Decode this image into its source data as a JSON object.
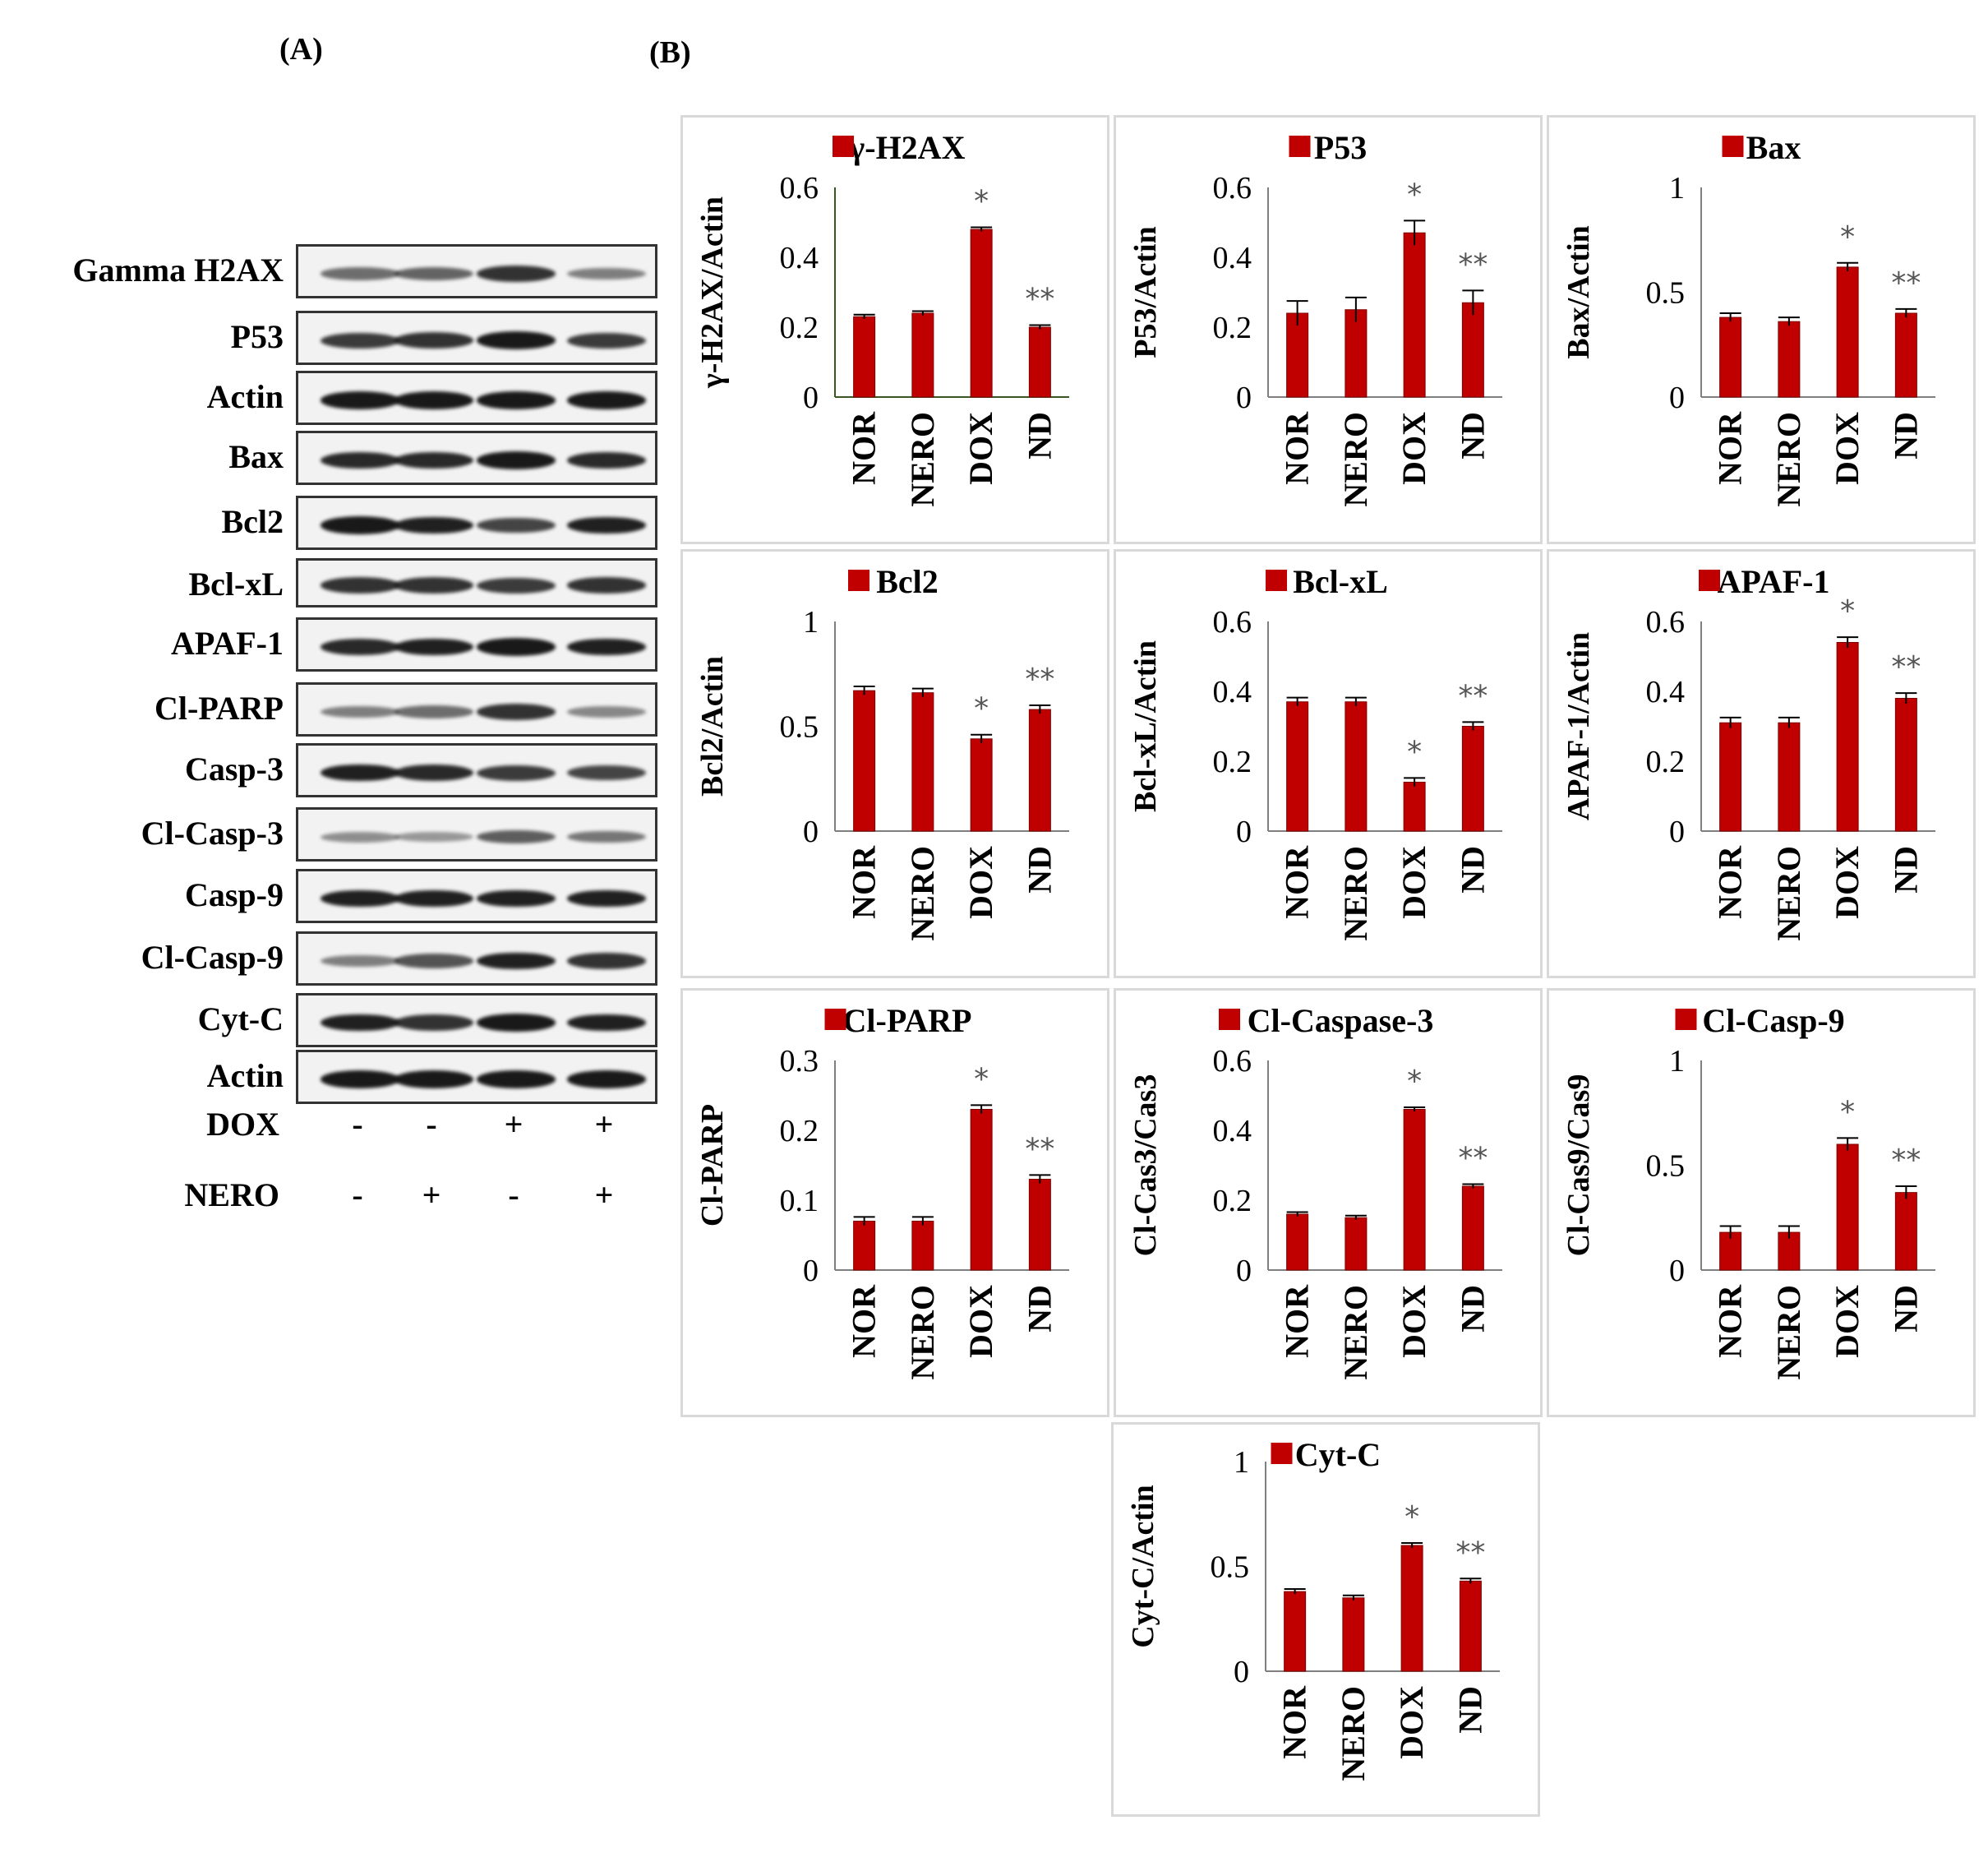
{
  "panels": {
    "a": "(A)",
    "b": "(B)"
  },
  "colors": {
    "bar": "#c00000",
    "bar_edge": "#7f0000",
    "axis": "#7f7f7f",
    "axis_first": "#385723",
    "border": "#d9d9d9",
    "band": "#111111"
  },
  "blots": [
    {
      "label": "Gamma H2AX",
      "intensity": [
        0.45,
        0.5,
        0.8,
        0.35
      ]
    },
    {
      "label": "P53",
      "intensity": [
        0.75,
        0.8,
        0.95,
        0.75
      ]
    },
    {
      "label": "Actin",
      "intensity": [
        0.95,
        0.95,
        0.95,
        0.95
      ]
    },
    {
      "label": "Bax",
      "intensity": [
        0.85,
        0.85,
        0.95,
        0.85
      ]
    },
    {
      "label": "Bcl2",
      "intensity": [
        0.95,
        0.9,
        0.7,
        0.9
      ]
    },
    {
      "label": "Bcl-xL",
      "intensity": [
        0.8,
        0.8,
        0.75,
        0.8
      ]
    },
    {
      "label": "APAF-1",
      "intensity": [
        0.85,
        0.9,
        0.95,
        0.9
      ]
    },
    {
      "label": "Cl-PARP",
      "intensity": [
        0.35,
        0.45,
        0.8,
        0.3
      ]
    },
    {
      "label": "Casp-3",
      "intensity": [
        0.9,
        0.85,
        0.75,
        0.7
      ]
    },
    {
      "label": "Cl-Casp-3",
      "intensity": [
        0.25,
        0.2,
        0.55,
        0.4
      ]
    },
    {
      "label": "Casp-9",
      "intensity": [
        0.9,
        0.9,
        0.9,
        0.9
      ]
    },
    {
      "label": "Cl-Casp-9",
      "intensity": [
        0.35,
        0.6,
        0.9,
        0.8
      ]
    },
    {
      "label": "Cyt-C",
      "intensity": [
        0.9,
        0.8,
        0.95,
        0.9
      ]
    },
    {
      "label": "Actin",
      "intensity": [
        0.95,
        0.95,
        0.95,
        0.95
      ]
    }
  ],
  "treatments": [
    {
      "label": "DOX",
      "signs": [
        "-",
        "-",
        "+",
        "+"
      ]
    },
    {
      "label": "NERO",
      "signs": [
        "-",
        "+",
        "-",
        "+"
      ]
    }
  ],
  "chart_data": [
    {
      "type": "bar",
      "title": "γ-H2AX",
      "ylabel": "γ-H2AX/Actin",
      "categories": [
        "NOR",
        "NERO",
        "DOX",
        "ND"
      ],
      "values": [
        0.23,
        0.24,
        0.48,
        0.2
      ],
      "errors": [
        0.006,
        0.006,
        0.006,
        0.006
      ],
      "ylim": [
        0,
        0.6
      ],
      "yticks": [
        "0",
        "0.2",
        "0.4",
        "0.6"
      ],
      "yticks_values": [
        0,
        0.2,
        0.4,
        0.6
      ],
      "annotations": [
        "",
        "",
        "*",
        "**"
      ]
    },
    {
      "type": "bar",
      "title": "P53",
      "ylabel": "P53/Actin",
      "categories": [
        "NOR",
        "NERO",
        "DOX",
        "ND"
      ],
      "values": [
        0.24,
        0.25,
        0.47,
        0.27
      ],
      "errors": [
        0.035,
        0.035,
        0.035,
        0.035
      ],
      "ylim": [
        0,
        0.6
      ],
      "yticks": [
        "0",
        "0.2",
        "0.4",
        "0.6"
      ],
      "yticks_values": [
        0,
        0.2,
        0.4,
        0.6
      ],
      "annotations": [
        "",
        "",
        "*",
        "**"
      ]
    },
    {
      "type": "bar",
      "title": "Bax",
      "ylabel": "Bax/Actin",
      "categories": [
        "NOR",
        "NERO",
        "DOX",
        "ND"
      ],
      "values": [
        0.38,
        0.36,
        0.62,
        0.4
      ],
      "errors": [
        0.02,
        0.02,
        0.02,
        0.02
      ],
      "ylim": [
        0,
        1
      ],
      "yticks": [
        "0",
        "0.5",
        "1"
      ],
      "yticks_values": [
        0,
        0.5,
        1
      ],
      "annotations": [
        "",
        "",
        "*",
        "**"
      ]
    },
    {
      "type": "bar",
      "title": "Bcl2",
      "ylabel": "Bcl2/Actin",
      "categories": [
        "NOR",
        "NERO",
        "DOX",
        "ND"
      ],
      "values": [
        0.67,
        0.66,
        0.44,
        0.58
      ],
      "errors": [
        0.02,
        0.02,
        0.02,
        0.02
      ],
      "ylim": [
        0,
        1
      ],
      "yticks": [
        "0",
        "0.5",
        "1"
      ],
      "yticks_values": [
        0,
        0.5,
        1
      ],
      "annotations": [
        "",
        "",
        "*",
        "**"
      ]
    },
    {
      "type": "bar",
      "title": "Bcl-xL",
      "ylabel": "Bcl-xL/Actin",
      "categories": [
        "NOR",
        "NERO",
        "DOX",
        "ND"
      ],
      "values": [
        0.37,
        0.37,
        0.14,
        0.3
      ],
      "errors": [
        0.012,
        0.012,
        0.012,
        0.012
      ],
      "ylim": [
        0,
        0.6
      ],
      "yticks": [
        "0",
        "0.2",
        "0.4",
        "0.6"
      ],
      "yticks_values": [
        0,
        0.2,
        0.4,
        0.6
      ],
      "annotations": [
        "",
        "",
        "*",
        "**"
      ]
    },
    {
      "type": "bar",
      "title": "APAF-1",
      "ylabel": "APAF-1/Actin",
      "categories": [
        "NOR",
        "NERO",
        "DOX",
        "ND"
      ],
      "values": [
        0.31,
        0.31,
        0.54,
        0.38
      ],
      "errors": [
        0.015,
        0.015,
        0.015,
        0.015
      ],
      "ylim": [
        0,
        0.6
      ],
      "yticks": [
        "0",
        "0.2",
        "0.4",
        "0.6"
      ],
      "yticks_values": [
        0,
        0.2,
        0.4,
        0.6
      ],
      "annotations": [
        "",
        "",
        "*",
        "**"
      ]
    },
    {
      "type": "bar",
      "title": "Cl-PARP",
      "ylabel": "Cl-PARP",
      "categories": [
        "NOR",
        "NERO",
        "DOX",
        "ND"
      ],
      "values": [
        0.07,
        0.07,
        0.23,
        0.13
      ],
      "errors": [
        0.006,
        0.006,
        0.006,
        0.006
      ],
      "ylim": [
        0,
        0.3
      ],
      "yticks": [
        "0",
        "0.1",
        "0.2",
        "0.3"
      ],
      "yticks_values": [
        0,
        0.1,
        0.2,
        0.3
      ],
      "annotations": [
        "",
        "",
        "*",
        "**"
      ]
    },
    {
      "type": "bar",
      "title": "Cl-Caspase-3",
      "ylabel": "Cl-Cas3/Cas3",
      "categories": [
        "NOR",
        "NERO",
        "DOX",
        "ND"
      ],
      "values": [
        0.16,
        0.15,
        0.46,
        0.24
      ],
      "errors": [
        0.006,
        0.006,
        0.006,
        0.006
      ],
      "ylim": [
        0,
        0.6
      ],
      "yticks": [
        "0",
        "0.2",
        "0.4",
        "0.6"
      ],
      "yticks_values": [
        0,
        0.2,
        0.4,
        0.6
      ],
      "annotations": [
        "",
        "",
        "*",
        "**"
      ]
    },
    {
      "type": "bar",
      "title": "Cl-Casp-9",
      "ylabel": "Cl-Cas9/Cas9",
      "categories": [
        "NOR",
        "NERO",
        "DOX",
        "ND"
      ],
      "values": [
        0.18,
        0.18,
        0.6,
        0.37
      ],
      "errors": [
        0.03,
        0.03,
        0.03,
        0.03
      ],
      "ylim": [
        0,
        1
      ],
      "yticks": [
        "0",
        "0.5",
        "1"
      ],
      "yticks_values": [
        0,
        0.5,
        1
      ],
      "annotations": [
        "",
        "",
        "*",
        "**"
      ]
    },
    {
      "type": "bar",
      "title": "Cyt-C",
      "ylabel": "Cyt-C/Actin",
      "categories": [
        "NOR",
        "NERO",
        "DOX",
        "ND"
      ],
      "values": [
        0.38,
        0.35,
        0.6,
        0.43
      ],
      "errors": [
        0.012,
        0.012,
        0.012,
        0.012
      ],
      "ylim": [
        0,
        1
      ],
      "yticks": [
        "0",
        "0.5",
        "1"
      ],
      "yticks_values": [
        0,
        0.5,
        1
      ],
      "annotations": [
        "",
        "",
        "*",
        "**"
      ]
    }
  ]
}
